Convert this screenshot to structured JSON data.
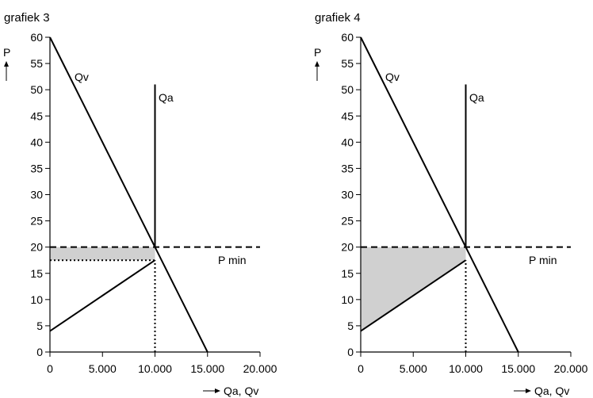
{
  "chart_data": [
    {
      "type": "line",
      "title": "grafiek 3",
      "ylabel": "P",
      "xlabel": "Qa, Qv",
      "xlim": [
        0,
        20000
      ],
      "ylim": [
        0,
        60
      ],
      "x_ticks": [
        "0",
        "5.000",
        "10.000",
        "15.000",
        "20.000"
      ],
      "y_ticks": [
        "0",
        "5",
        "10",
        "15",
        "20",
        "25",
        "30",
        "35",
        "40",
        "45",
        "50",
        "55",
        "60"
      ],
      "series": [
        {
          "name": "Qv",
          "x": [
            0,
            15000
          ],
          "y": [
            60,
            0
          ],
          "style": "solid"
        },
        {
          "name": "Qa",
          "x": [
            10000,
            10000
          ],
          "y": [
            20,
            51
          ],
          "style": "solid"
        },
        {
          "x": [
            0,
            10000
          ],
          "y": [
            4,
            17.5
          ],
          "style": "solid"
        },
        {
          "name": "P min",
          "x": [
            0,
            20000
          ],
          "y": [
            20,
            20
          ],
          "style": "dashed"
        }
      ],
      "guides": [
        {
          "x": [
            0,
            10000
          ],
          "y": [
            17.5,
            17.5
          ],
          "style": "dotted"
        },
        {
          "x": [
            10000,
            10000
          ],
          "y": [
            0,
            17.5
          ],
          "style": "dotted"
        }
      ],
      "shaded_region": {
        "x": [
          0,
          10000,
          10000,
          0
        ],
        "y": [
          20,
          20,
          17.5,
          17.5
        ],
        "color": "#d0d0d0"
      }
    },
    {
      "type": "line",
      "title": "grafiek 4",
      "ylabel": "P",
      "xlabel": "Qa, Qv",
      "xlim": [
        0,
        20000
      ],
      "ylim": [
        0,
        60
      ],
      "x_ticks": [
        "0",
        "5.000",
        "10.000",
        "15.000",
        "20.000"
      ],
      "y_ticks": [
        "0",
        "5",
        "10",
        "15",
        "20",
        "25",
        "30",
        "35",
        "40",
        "45",
        "50",
        "55",
        "60"
      ],
      "series": [
        {
          "name": "Qv",
          "x": [
            0,
            15000
          ],
          "y": [
            60,
            0
          ],
          "style": "solid"
        },
        {
          "name": "Qa",
          "x": [
            10000,
            10000
          ],
          "y": [
            20,
            51
          ],
          "style": "solid"
        },
        {
          "x": [
            0,
            10000
          ],
          "y": [
            4,
            17.5
          ],
          "style": "solid"
        },
        {
          "name": "P min",
          "x": [
            0,
            20000
          ],
          "y": [
            20,
            20
          ],
          "style": "dashed"
        }
      ],
      "guides": [
        {
          "x": [
            10000,
            10000
          ],
          "y": [
            0,
            17.5
          ],
          "style": "dotted"
        }
      ],
      "shaded_region": {
        "x": [
          0,
          10000,
          10000,
          0,
          0
        ],
        "y": [
          20,
          20,
          17.5,
          4,
          20
        ],
        "color": "#d0d0d0"
      }
    }
  ]
}
